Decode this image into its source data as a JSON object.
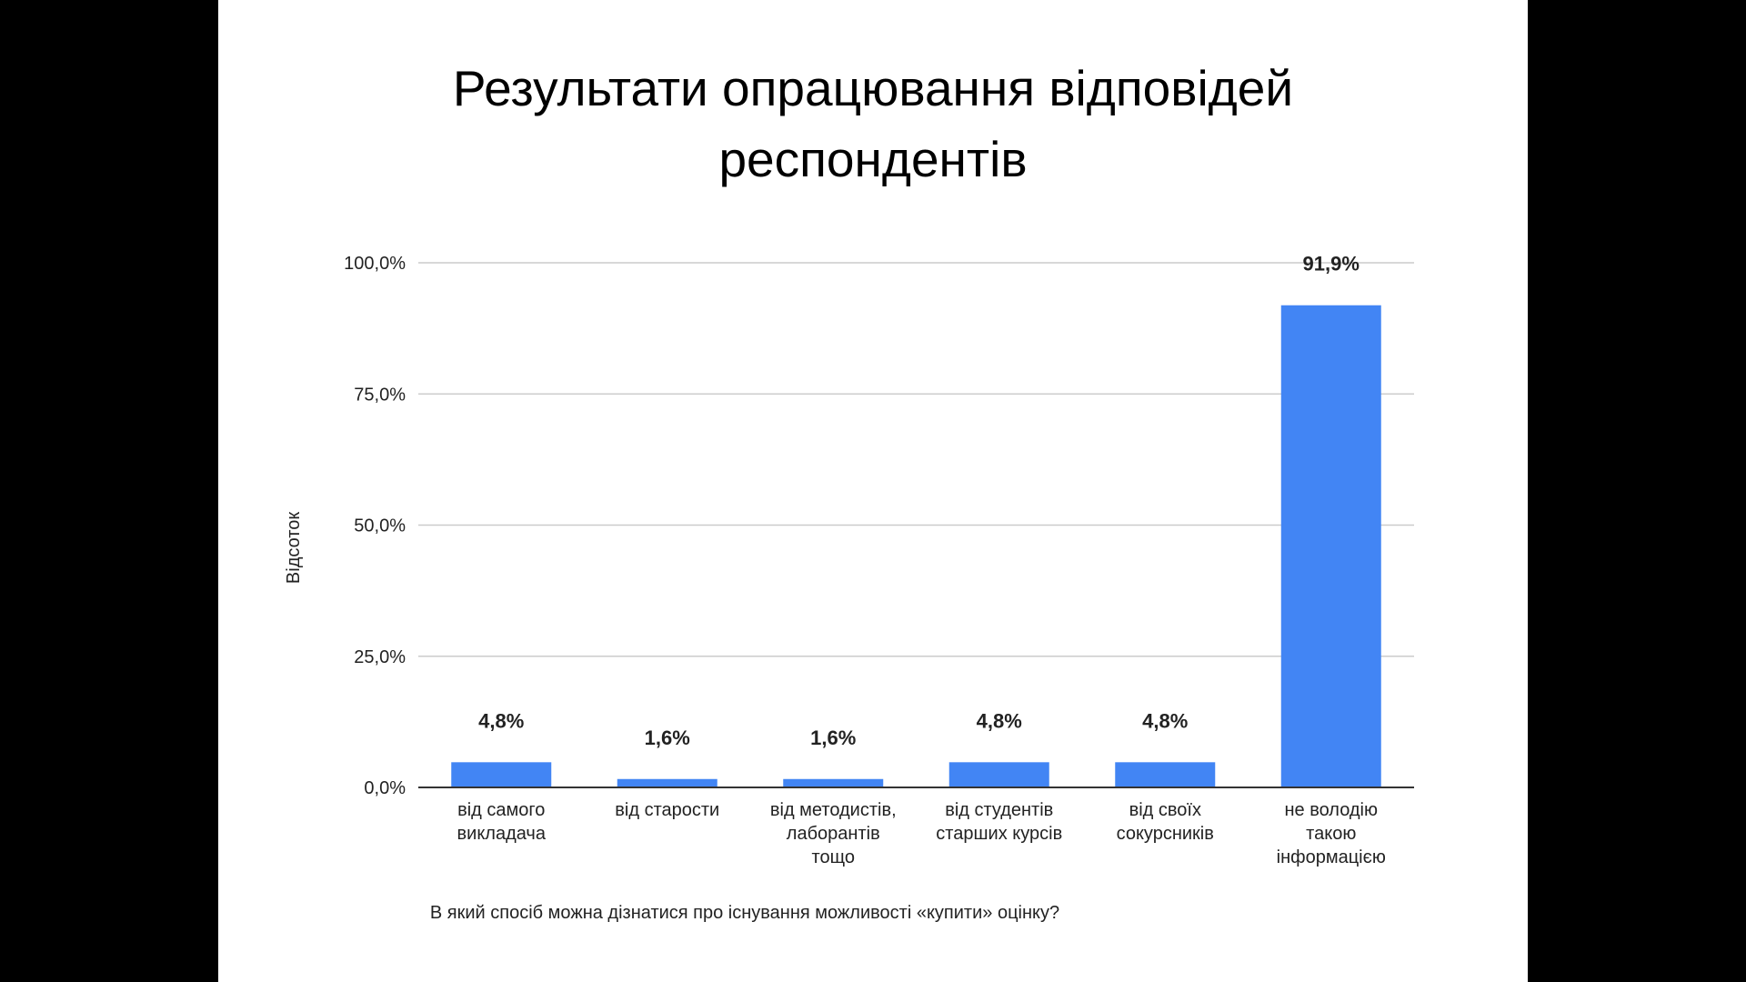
{
  "slide": {
    "title_line1": "Результати опрацювання відповідей",
    "title_line2": "респондентів"
  },
  "chart_data": {
    "type": "bar",
    "categories": [
      [
        "від самого",
        "викладача"
      ],
      [
        "від старости"
      ],
      [
        "від методистів,",
        "лаборантів",
        "тощо"
      ],
      [
        "від студентів",
        "старших курсів"
      ],
      [
        "від своїх",
        "сокурсників"
      ],
      [
        "не володію",
        "такою",
        "інформацією"
      ]
    ],
    "values": [
      4.8,
      1.6,
      1.6,
      4.8,
      4.8,
      91.9
    ],
    "value_labels": [
      "4,8%",
      "1,6%",
      "1,6%",
      "4,8%",
      "4,8%",
      "91,9%"
    ],
    "yticks": [
      0,
      25,
      50,
      75,
      100
    ],
    "ytick_labels": [
      "0,0%",
      "25,0%",
      "50,0%",
      "75,0%",
      "100,0%"
    ],
    "ylim": [
      0,
      100
    ],
    "xlabel": "В який спосіб можна дізнатися про існування можливості «купити» оцінку?",
    "ylabel": "Відсоток",
    "title": "",
    "grid": true,
    "bar_color": "#4285f4",
    "grid_color": "#cccccc",
    "axis_color": "#333333"
  }
}
